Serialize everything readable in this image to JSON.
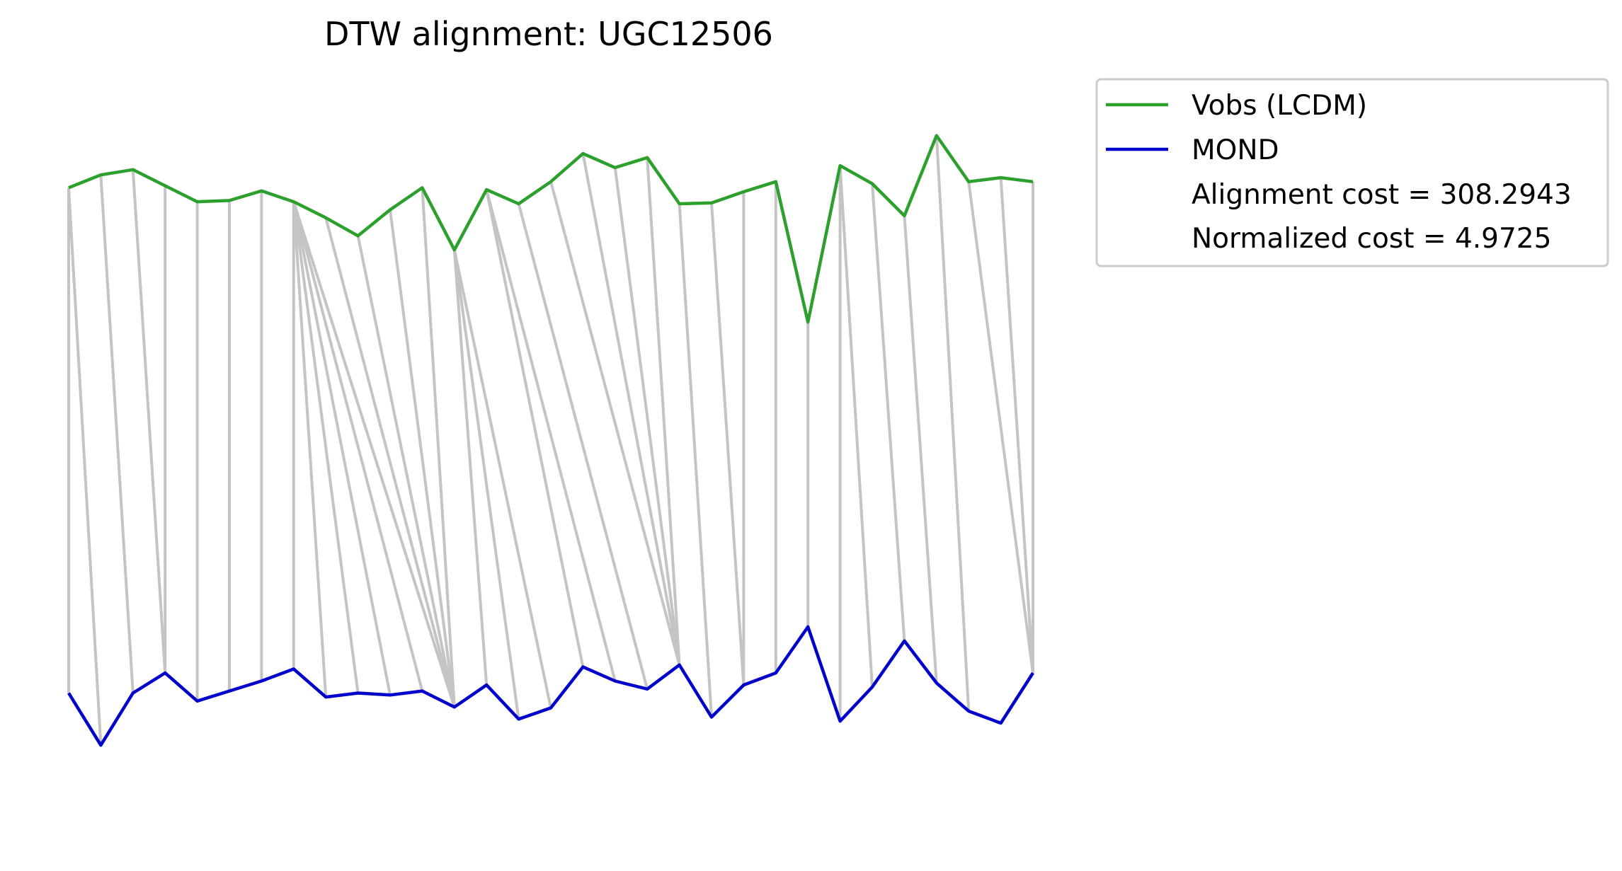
{
  "chart_data": {
    "type": "line",
    "title": "DTW alignment: UGC12506",
    "xlabel": "",
    "ylabel": "",
    "axes_visible": false,
    "grid": false,
    "legend_position": "outside upper right",
    "colors": {
      "series_1": "#2ca02c",
      "series_2": "#0000cc",
      "alignment_lines": "#c4c4c4"
    },
    "series": [
      {
        "name": "Vobs (LCDM)",
        "values": [
          1.0,
          1.32,
          1.45,
          1.05,
          0.65,
          0.68,
          0.92,
          0.65,
          0.25,
          -0.2,
          0.45,
          1.0,
          -0.55,
          0.95,
          0.6,
          1.15,
          1.85,
          1.5,
          1.75,
          0.6,
          0.62,
          0.9,
          1.15,
          -2.35,
          1.55,
          1.1,
          0.3,
          2.3,
          1.15,
          1.25,
          1.15
        ]
      },
      {
        "name": "MOND",
        "values": [
          0.75,
          -0.55,
          0.75,
          1.25,
          0.55,
          0.8,
          1.05,
          1.35,
          0.65,
          0.75,
          0.7,
          0.8,
          0.4,
          0.95,
          0.1,
          0.38,
          1.4,
          1.05,
          0.85,
          1.45,
          0.15,
          0.95,
          1.25,
          2.4,
          0.05,
          0.9,
          2.05,
          1.0,
          0.3,
          0.0,
          1.25
        ]
      }
    ],
    "alignment_path": [
      [
        0,
        0
      ],
      [
        0,
        1
      ],
      [
        1,
        2
      ],
      [
        2,
        3
      ],
      [
        3,
        3
      ],
      [
        4,
        4
      ],
      [
        5,
        5
      ],
      [
        6,
        6
      ],
      [
        7,
        7
      ],
      [
        7,
        8
      ],
      [
        7,
        9
      ],
      [
        7,
        10
      ],
      [
        7,
        11
      ],
      [
        7,
        12
      ],
      [
        8,
        12
      ],
      [
        9,
        12
      ],
      [
        10,
        12
      ],
      [
        11,
        12
      ],
      [
        12,
        13
      ],
      [
        12,
        14
      ],
      [
        12,
        15
      ],
      [
        13,
        16
      ],
      [
        13,
        17
      ],
      [
        14,
        18
      ],
      [
        15,
        19
      ],
      [
        16,
        19
      ],
      [
        17,
        19
      ],
      [
        18,
        19
      ],
      [
        19,
        20
      ],
      [
        20,
        21
      ],
      [
        21,
        21
      ],
      [
        22,
        22
      ],
      [
        23,
        23
      ],
      [
        24,
        24
      ],
      [
        24,
        25
      ],
      [
        25,
        26
      ],
      [
        26,
        27
      ],
      [
        27,
        28
      ],
      [
        28,
        30
      ],
      [
        29,
        30
      ],
      [
        30,
        30
      ]
    ],
    "legend_entries": [
      {
        "label": "Vobs (LCDM)",
        "swatch": "series_1"
      },
      {
        "label": "MOND",
        "swatch": "series_2"
      },
      {
        "label": "Alignment cost = 308.2943",
        "swatch": "none"
      },
      {
        "label": "Normalized cost = 4.9725",
        "swatch": "none"
      }
    ]
  }
}
